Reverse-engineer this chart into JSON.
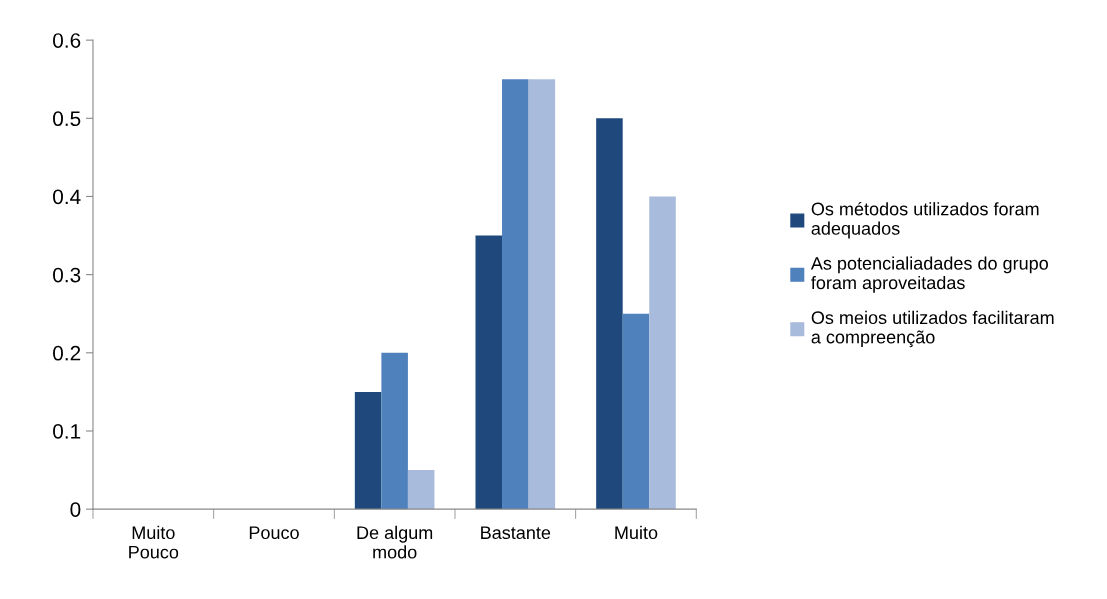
{
  "chart_data": {
    "type": "bar",
    "categories": [
      "Muito\nPouco",
      "Pouco",
      "De algum\nmodo",
      "Bastante",
      "Muito"
    ],
    "series": [
      {
        "name": "Os métodos utilizados foram\nadequados",
        "color": "#1f497d",
        "values": [
          0,
          0,
          0.15,
          0.35,
          0.5
        ]
      },
      {
        "name": "As potencialiadades do grupo\nforam aproveitadas",
        "color": "#4f81bd",
        "values": [
          0,
          0,
          0.2,
          0.55,
          0.25
        ]
      },
      {
        "name": "Os meios utilizados facilitaram\na compreenção",
        "color": "#a9bbdc",
        "values": [
          0,
          0,
          0.05,
          0.55,
          0.4
        ]
      }
    ],
    "ylim": [
      0,
      0.6
    ],
    "yticks": [
      0,
      0.1,
      0.2,
      0.3,
      0.4,
      0.5,
      0.6
    ],
    "grid": false,
    "legend": "right"
  }
}
